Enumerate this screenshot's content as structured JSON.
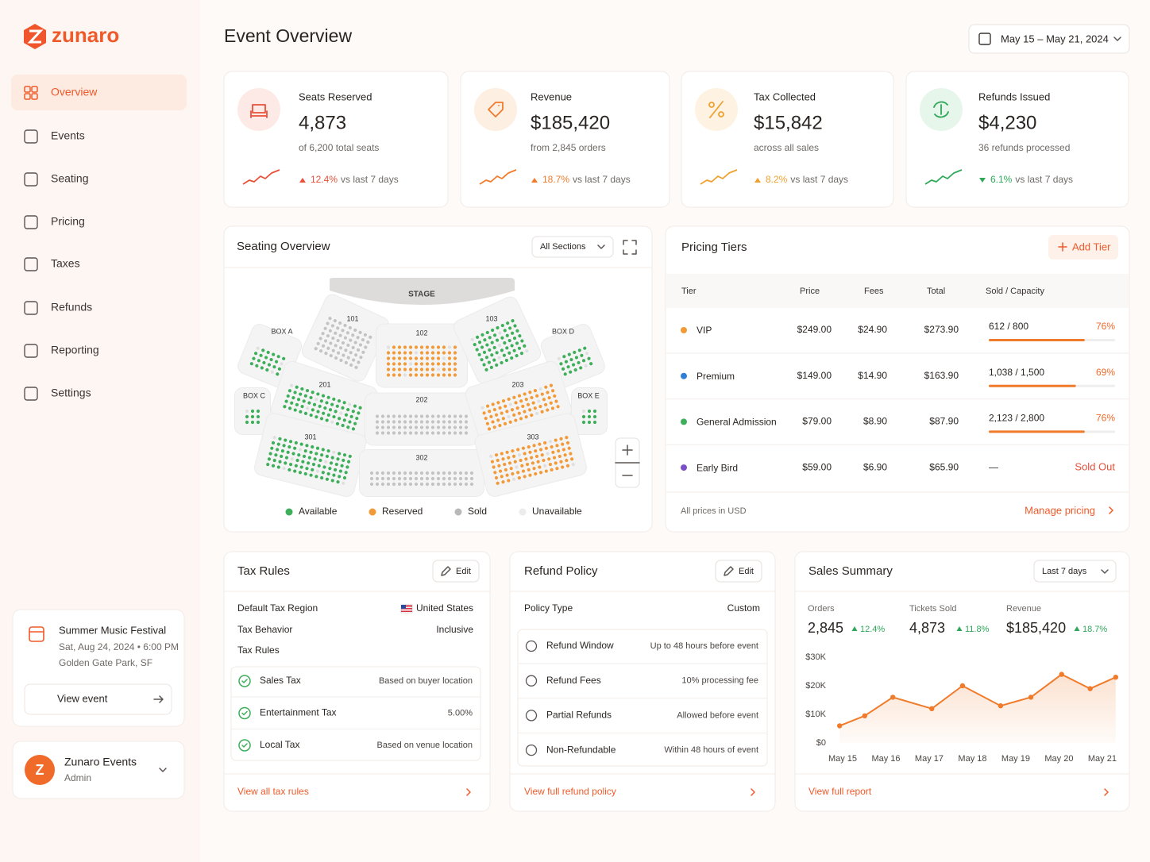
{
  "brand": "zunaro",
  "nav": [
    "Overview",
    "Events",
    "Seating",
    "Pricing",
    "Taxes",
    "Refunds",
    "Reporting",
    "Settings"
  ],
  "event": {
    "title": "Summer Music Festival",
    "date": "Sat, Aug 24, 2024 • 6:00 PM",
    "location": "Golden Gate Park, SF",
    "action": "View event"
  },
  "account": {
    "initial": "Z",
    "name": "Zunaro Events",
    "role": "Admin"
  },
  "header": {
    "title": "Event Overview",
    "date_range": "May 15 – May 21, 2024"
  },
  "kpis": [
    {
      "label": "Seats Reserved",
      "value": "4,873",
      "detail": "of 6,200 total seats",
      "change": "12.4%",
      "direction": "up",
      "period": "vs last 7 days"
    },
    {
      "label": "Revenue",
      "value": "$185,420",
      "detail": "from 2,845 orders",
      "change": "18.7%",
      "direction": "up",
      "period": "vs last 7 days"
    },
    {
      "label": "Tax Collected",
      "value": "$15,842",
      "detail": "across all sales",
      "change": "8.2%",
      "direction": "up",
      "period": "vs last 7 days"
    },
    {
      "label": "Refunds Issued",
      "value": "$4,230",
      "detail": "36 refunds processed",
      "change": "6.1%",
      "direction": "down",
      "period": "vs last 7 days"
    }
  ],
  "seating": {
    "title": "Seating Overview",
    "filter": "All Sections",
    "stage": "STAGE",
    "sections": [
      "BOX A",
      "101",
      "102",
      "103",
      "BOX D",
      "BOX C",
      "201",
      "202",
      "203",
      "BOX E",
      "301",
      "302",
      "303"
    ],
    "legend": [
      "Available",
      "Reserved",
      "Sold",
      "Unavailable"
    ]
  },
  "pricing": {
    "title": "Pricing Tiers",
    "action": "Add Tier",
    "columns": [
      "Tier",
      "Price",
      "Fees",
      "Total",
      "Sold / Capacity"
    ],
    "rows": [
      {
        "tier": "VIP",
        "color": "#f29a38",
        "price": "$249.00",
        "fees": "$24.90",
        "total": "$273.90",
        "sold": "612 / 800",
        "percent": {
          "value": 76,
          "label": "76%"
        }
      },
      {
        "tier": "Premium",
        "color": "#2f7fd8",
        "price": "$149.00",
        "fees": "$14.90",
        "total": "$163.90",
        "sold": "1,038 / 1,500",
        "percent": {
          "value": 69,
          "label": "69%"
        }
      },
      {
        "tier": "General Admission",
        "color": "#3dae5a",
        "price": "$79.00",
        "fees": "$8.90",
        "total": "$87.90",
        "sold": "2,123 / 2,800",
        "percent": {
          "value": 76,
          "label": "76%"
        }
      },
      {
        "tier": "Early Bird",
        "color": "#7b4fc9",
        "price": "$59.00",
        "fees": "$6.90",
        "total": "$65.90",
        "sold": "—",
        "status": "Sold Out"
      }
    ],
    "note": "All prices in USD",
    "link": "Manage pricing"
  },
  "tax": {
    "title": "Tax Rules",
    "action": "Edit",
    "settings": [
      {
        "label": "Default Tax Region",
        "value": "United States"
      },
      {
        "label": "Tax Behavior",
        "value": "Inclusive"
      }
    ],
    "subtitle": "Tax Rules",
    "rules": [
      {
        "label": "Sales Tax",
        "value": "Based on buyer location"
      },
      {
        "label": "Entertainment Tax",
        "value": "5.00%"
      },
      {
        "label": "Local Tax",
        "value": "Based on venue location"
      }
    ],
    "link": "View all tax rules"
  },
  "refund": {
    "title": "Refund Policy",
    "action": "Edit",
    "policy_label": "Policy Type",
    "policy_value": "Custom",
    "items": [
      {
        "label": "Refund Window",
        "value": "Up to 48 hours before event"
      },
      {
        "label": "Refund Fees",
        "value": "10% processing fee"
      },
      {
        "label": "Partial Refunds",
        "value": "Allowed before event"
      },
      {
        "label": "Non-Refundable",
        "value": "Within 48 hours of event"
      }
    ],
    "link": "View full refund policy"
  },
  "sales": {
    "title": "Sales Summary",
    "filter": "Last 7 days",
    "metrics": [
      {
        "label": "Orders",
        "value": "2,845",
        "change": "12.4%"
      },
      {
        "label": "Tickets Sold",
        "value": "4,873",
        "change": "11.8%"
      },
      {
        "label": "Revenue",
        "value": "$185,420",
        "change": "18.7%"
      }
    ],
    "link": "View full report",
    "chart_data": {
      "type": "line",
      "color": "#f07b2b",
      "x": [
        -0.07,
        0.51,
        1.16,
        2.06,
        2.77,
        3.65,
        4.35,
        5.06,
        5.72,
        6.31
      ],
      "values": [
        6000,
        9500,
        16000,
        12000,
        20000,
        13000,
        16000,
        24000,
        19000,
        23000
      ],
      "xlim": [
        -0.1,
        6.35
      ],
      "xticks": [
        {
          "value": 0,
          "label": "May 15"
        },
        {
          "value": 1,
          "label": "May 16"
        },
        {
          "value": 2,
          "label": "May 17"
        },
        {
          "value": 3,
          "label": "May 18"
        },
        {
          "value": 4,
          "label": "May 19"
        },
        {
          "value": 5,
          "label": "May 20"
        },
        {
          "value": 6,
          "label": "May 21"
        }
      ],
      "ylim": [
        0,
        30000
      ],
      "yticks": [
        {
          "value": 0,
          "label": "$0"
        },
        {
          "value": 10000,
          "label": "$10K"
        },
        {
          "value": 20000,
          "label": "$20K"
        },
        {
          "value": 30000,
          "label": "$30K"
        }
      ]
    }
  }
}
